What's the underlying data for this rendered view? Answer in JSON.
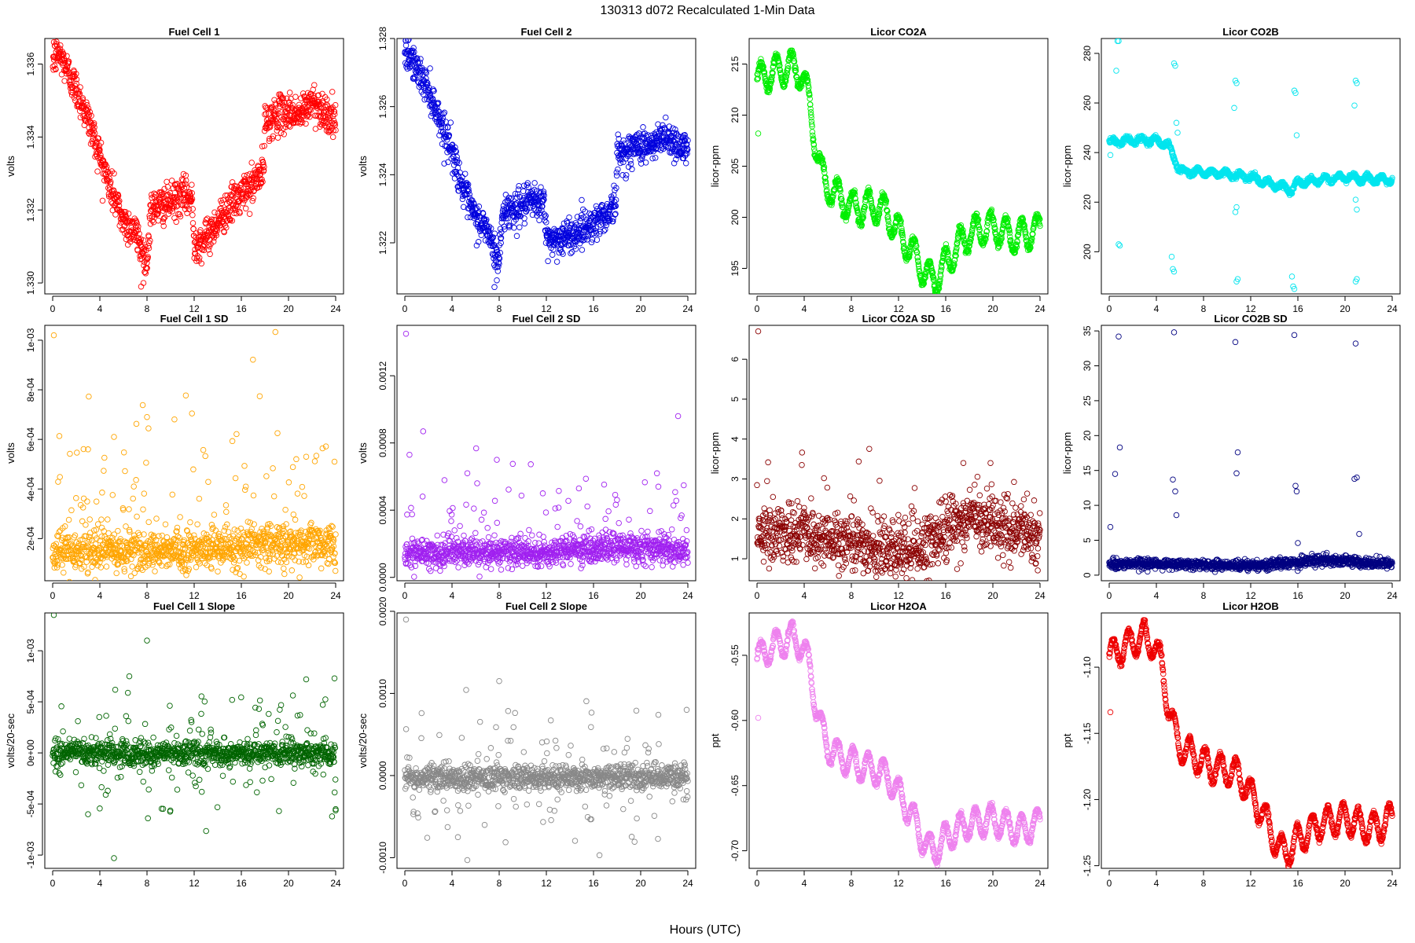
{
  "figure": {
    "title": "130313   d072   Recalculated 1-Min Data",
    "xlabel": "Hours (UTC)"
  },
  "chart_data": [
    {
      "type": "scatter",
      "title": "Fuel Cell 1",
      "ylabel": "volts",
      "color": "#ff0000",
      "xlim": [
        0,
        24
      ],
      "ylim": [
        1.3297,
        1.3367
      ],
      "xticks": [
        0,
        4,
        8,
        12,
        16,
        20,
        24
      ],
      "xtick_labels": [
        "0",
        "4",
        "8",
        "12",
        "16",
        "20",
        "24"
      ],
      "yticks": [
        1.33,
        1.332,
        1.334,
        1.336
      ],
      "ytick_labels": [
        "1.330",
        "1.332",
        "1.334",
        "1.336"
      ],
      "trend_x": [
        0,
        0.5,
        1,
        2,
        3,
        4,
        5,
        6,
        7,
        7.5,
        8,
        8.3,
        9,
        10,
        11,
        11.8,
        12,
        13,
        14,
        15,
        16,
        17,
        17.9,
        18,
        19,
        20,
        21,
        22,
        23,
        24
      ],
      "trend_y": [
        1.3361,
        1.3363,
        1.336,
        1.3353,
        1.3345,
        1.3335,
        1.3325,
        1.3317,
        1.3314,
        1.331,
        1.3305,
        1.332,
        1.3321,
        1.3322,
        1.3324,
        1.3323,
        1.3311,
        1.3312,
        1.3317,
        1.3321,
        1.3324,
        1.3327,
        1.3331,
        1.3344,
        1.3346,
        1.3347,
        1.3346,
        1.335,
        1.3347,
        1.3344
      ],
      "noise": 0.00025,
      "outliers": [
        [
          7.5,
          1.3299
        ],
        [
          7.7,
          1.33
        ],
        [
          0.1,
          1.3366
        ],
        [
          5.2,
          1.333
        ]
      ]
    },
    {
      "type": "scatter",
      "title": "Fuel Cell 2",
      "ylabel": "volts",
      "color": "#0000dd",
      "xlim": [
        0,
        24
      ],
      "ylim": [
        1.3205,
        1.328
      ],
      "xticks": [
        0,
        4,
        8,
        12,
        16,
        20,
        24
      ],
      "xtick_labels": [
        "0",
        "4",
        "8",
        "12",
        "16",
        "20",
        "24"
      ],
      "yticks": [
        1.322,
        1.324,
        1.326,
        1.328
      ],
      "ytick_labels": [
        "1.322",
        "1.324",
        "1.326",
        "1.328"
      ],
      "trend_x": [
        0,
        0.5,
        1,
        2,
        3,
        4,
        5,
        6,
        7,
        7.5,
        8,
        8.3,
        9,
        10,
        11,
        11.8,
        12,
        13,
        14,
        15,
        16,
        17,
        17.9,
        18,
        19,
        20,
        21,
        22,
        23,
        24
      ],
      "trend_y": [
        1.3274,
        1.3275,
        1.3271,
        1.3265,
        1.3256,
        1.3247,
        1.3235,
        1.3227,
        1.3224,
        1.3218,
        1.3215,
        1.3229,
        1.323,
        1.3231,
        1.3232,
        1.3232,
        1.3221,
        1.3221,
        1.3222,
        1.3224,
        1.3226,
        1.3228,
        1.3232,
        1.3246,
        1.3247,
        1.3249,
        1.3248,
        1.3252,
        1.3249,
        1.3247
      ],
      "noise": 0.00025,
      "outliers": [
        [
          7.6,
          1.3207
        ],
        [
          7.8,
          1.3209
        ],
        [
          0.1,
          1.3278
        ],
        [
          9.5,
          1.3222
        ]
      ]
    },
    {
      "type": "scatter",
      "title": "Licor CO2A",
      "ylabel": "licor-ppm",
      "color": "#00ee00",
      "xlim": [
        0,
        24
      ],
      "ylim": [
        192.5,
        217.5
      ],
      "xticks": [
        0,
        4,
        8,
        12,
        16,
        20,
        24
      ],
      "xtick_labels": [
        "0",
        "4",
        "8",
        "12",
        "16",
        "20",
        "24"
      ],
      "yticks": [
        195,
        200,
        205,
        210,
        215
      ],
      "ytick_labels": [
        "195",
        "200",
        "205",
        "210",
        "215"
      ],
      "trend_x": [
        0,
        1,
        2,
        3,
        3.8,
        4.5,
        5,
        5.5,
        6,
        7,
        8,
        9,
        10,
        11,
        12,
        13,
        14,
        14.5,
        15,
        15.5,
        16,
        17,
        18,
        19,
        20,
        21,
        22,
        23,
        24
      ],
      "trend_y": [
        213.5,
        214.0,
        214.5,
        214.8,
        214.0,
        211.0,
        207.0,
        204.0,
        203.0,
        202.0,
        201.0,
        201.0,
        201.0,
        200.5,
        198.5,
        197.0,
        195.0,
        194.2,
        194.0,
        194.5,
        195.5,
        197.0,
        198.5,
        198.8,
        199.0,
        198.5,
        198.0,
        198.5,
        198.8
      ],
      "wave_amp": 1.5,
      "wave_period": 1.3,
      "noise": 0.2,
      "outliers": [
        [
          0.1,
          208.2
        ]
      ]
    },
    {
      "type": "scatter",
      "title": "Licor CO2B",
      "ylabel": "licor-ppm",
      "color": "#00e5ee",
      "xlim": [
        0,
        24
      ],
      "ylim": [
        183,
        286
      ],
      "xticks": [
        0,
        4,
        8,
        12,
        16,
        20,
        24
      ],
      "xtick_labels": [
        "0",
        "4",
        "8",
        "12",
        "16",
        "20",
        "24"
      ],
      "yticks": [
        200,
        220,
        240,
        260,
        280
      ],
      "ytick_labels": [
        "200",
        "220",
        "240",
        "260",
        "280"
      ],
      "trend_x": [
        0,
        2,
        4,
        5,
        5.6,
        6,
        8,
        10,
        12,
        14,
        15.5,
        16,
        18,
        20,
        22,
        24
      ],
      "trend_y": [
        244.0,
        245.0,
        245.0,
        243.0,
        237.0,
        232.5,
        232.0,
        231.5,
        230.0,
        227.0,
        225.0,
        228.0,
        229.0,
        230.0,
        229.5,
        229.0
      ],
      "wave_amp": 1.2,
      "wave_period": 1.2,
      "noise": 0.5,
      "outliers": [
        [
          0.7,
          285
        ],
        [
          0.8,
          285
        ],
        [
          0.6,
          273
        ],
        [
          0.9,
          202.5
        ],
        [
          0.8,
          203
        ],
        [
          5.5,
          276
        ],
        [
          5.6,
          275
        ],
        [
          5.4,
          193
        ],
        [
          5.5,
          192
        ],
        [
          5.3,
          198
        ],
        [
          5.7,
          252
        ],
        [
          5.8,
          248
        ],
        [
          10.7,
          269
        ],
        [
          10.8,
          268
        ],
        [
          10.6,
          258
        ],
        [
          10.7,
          216
        ],
        [
          10.8,
          218
        ],
        [
          10.9,
          189
        ],
        [
          10.8,
          188
        ],
        [
          15.7,
          265
        ],
        [
          15.8,
          264
        ],
        [
          15.6,
          186
        ],
        [
          15.7,
          185
        ],
        [
          15.5,
          190
        ],
        [
          15.9,
          247
        ],
        [
          20.9,
          269
        ],
        [
          21.0,
          268
        ],
        [
          20.8,
          259
        ],
        [
          20.9,
          221
        ],
        [
          21.0,
          217
        ],
        [
          21.0,
          189
        ],
        [
          20.9,
          188
        ],
        [
          0.1,
          239
        ]
      ]
    },
    {
      "type": "scatter",
      "title": "Fuel Cell 1 SD",
      "ylabel": "volts",
      "color": "#ffa500",
      "xlim": [
        0,
        24
      ],
      "ylim": [
        3e-05,
        0.00106
      ],
      "xticks": [
        0,
        4,
        8,
        12,
        16,
        20,
        24
      ],
      "xtick_labels": [
        "0",
        "4",
        "8",
        "12",
        "16",
        "20",
        "24"
      ],
      "yticks": [
        0.0002,
        0.0004,
        0.0006,
        0.0008,
        0.001
      ],
      "ytick_labels": [
        "2e-04",
        "4e-04",
        "6e-04",
        "8e-04",
        "1e-03"
      ],
      "trend_x": [
        0,
        12,
        18,
        24
      ],
      "trend_y": [
        0.000145,
        0.00015,
        0.00018,
        0.00017
      ],
      "noise": 4e-05,
      "spread_frac": 0.1,
      "spread_scale": 0.00025,
      "outliers": [
        [
          0.1,
          0.00102
        ],
        [
          8.0,
          0.00069
        ],
        [
          5.2,
          0.00061
        ],
        [
          3.0,
          0.00056
        ],
        [
          23.9,
          0.00051
        ],
        [
          21.5,
          0.00053
        ]
      ]
    },
    {
      "type": "scatter",
      "title": "Fuel Cell 2 SD",
      "ylabel": "volts",
      "color": "#a020f0",
      "xlim": [
        0,
        24
      ],
      "ylim": [
        -2e-05,
        0.0015
      ],
      "xticks": [
        0,
        4,
        8,
        12,
        16,
        20,
        24
      ],
      "xtick_labels": [
        "0",
        "4",
        "8",
        "12",
        "16",
        "20",
        "24"
      ],
      "yticks": [
        0.0,
        0.0004,
        0.0008,
        0.0012
      ],
      "ytick_labels": [
        "0.0000",
        "0.0004",
        "0.0008",
        "0.0012"
      ],
      "trend_x": [
        0,
        12,
        18,
        24
      ],
      "trend_y": [
        0.00014,
        0.00015,
        0.00018,
        0.00015
      ],
      "noise": 4e-05,
      "spread_frac": 0.08,
      "spread_scale": 0.0003,
      "outliers": [
        [
          0.1,
          0.00145
        ],
        [
          7.8,
          0.0007
        ],
        [
          5.3,
          0.00062
        ],
        [
          21.5,
          0.00054
        ],
        [
          11.7,
          0.0005
        ]
      ]
    },
    {
      "type": "scatter",
      "title": "Licor CO2A SD",
      "ylabel": "licor-ppm",
      "color": "#8b0000",
      "xlim": [
        0,
        24
      ],
      "ylim": [
        0.45,
        6.85
      ],
      "xticks": [
        0,
        4,
        8,
        12,
        16,
        20,
        24
      ],
      "xtick_labels": [
        "0",
        "4",
        "8",
        "12",
        "16",
        "20",
        "24"
      ],
      "yticks": [
        1,
        2,
        3,
        4,
        5,
        6
      ],
      "ytick_labels": [
        "1",
        "2",
        "3",
        "4",
        "5",
        "6"
      ],
      "trend_x": [
        0,
        4,
        8,
        12,
        14,
        18,
        20,
        24
      ],
      "trend_y": [
        1.6,
        1.6,
        1.4,
        1.15,
        1.3,
        2.0,
        1.9,
        1.5
      ],
      "noise": 0.35,
      "spread_frac": 0.05,
      "spread_scale": 0.9,
      "outliers": [
        [
          0.1,
          6.7
        ],
        [
          3.8,
          3.35
        ],
        [
          17.5,
          3.4
        ],
        [
          19.8,
          3.4
        ]
      ]
    },
    {
      "type": "scatter",
      "title": "Licor CO2B SD",
      "ylabel": "licor-ppm",
      "color": "#000080",
      "xlim": [
        0,
        24
      ],
      "ylim": [
        -0.8,
        35.8
      ],
      "xticks": [
        0,
        4,
        8,
        12,
        16,
        20,
        24
      ],
      "xtick_labels": [
        "0",
        "4",
        "8",
        "12",
        "16",
        "20",
        "24"
      ],
      "yticks": [
        0,
        5,
        10,
        15,
        20,
        25,
        30,
        35
      ],
      "ytick_labels": [
        "0",
        "5",
        "10",
        "15",
        "20",
        "25",
        "30",
        "35"
      ],
      "trend_x": [
        0,
        6,
        10,
        14,
        18,
        24
      ],
      "trend_y": [
        1.7,
        1.6,
        1.4,
        1.5,
        2.2,
        1.6
      ],
      "noise": 0.35,
      "outliers": [
        [
          0.1,
          6.9
        ],
        [
          0.8,
          34.2
        ],
        [
          0.5,
          14.5
        ],
        [
          0.9,
          18.3
        ],
        [
          5.5,
          34.8
        ],
        [
          5.6,
          12.0
        ],
        [
          5.4,
          13.7
        ],
        [
          5.7,
          8.6
        ],
        [
          10.7,
          33.4
        ],
        [
          10.8,
          14.6
        ],
        [
          10.9,
          17.6
        ],
        [
          15.7,
          34.4
        ],
        [
          15.8,
          12.8
        ],
        [
          15.9,
          12.0
        ],
        [
          16.0,
          4.6
        ],
        [
          20.9,
          33.2
        ],
        [
          21.0,
          14.0
        ],
        [
          20.8,
          13.8
        ],
        [
          21.2,
          5.9
        ]
      ]
    },
    {
      "type": "scatter",
      "title": "Fuel Cell 1 Slope",
      "ylabel": "volts/20-sec",
      "color": "#006400",
      "xlim": [
        0,
        24
      ],
      "ylim": [
        -0.00113,
        0.00137
      ],
      "xticks": [
        0,
        4,
        8,
        12,
        16,
        20,
        24
      ],
      "xtick_labels": [
        "0",
        "4",
        "8",
        "12",
        "16",
        "20",
        "24"
      ],
      "yticks": [
        -0.001,
        -0.0005,
        0.0,
        0.0005,
        0.001
      ],
      "ytick_labels": [
        "-1e-03",
        "-5e-04",
        "0e+00",
        "5e-04",
        "1e-03"
      ],
      "trend_x": [
        0,
        24
      ],
      "trend_y": [
        0.0,
        0.0
      ],
      "noise": 6e-05,
      "spread_frac": 0.12,
      "spread_scale": 0.0003,
      "outliers": [
        [
          0.1,
          0.00135
        ],
        [
          8.0,
          0.0011
        ],
        [
          5.2,
          -0.00103
        ],
        [
          6.5,
          0.00075
        ],
        [
          21.5,
          0.00072
        ],
        [
          23.9,
          0.00073
        ],
        [
          24.0,
          -0.00055
        ],
        [
          3.0,
          -0.0006
        ]
      ]
    },
    {
      "type": "scatter",
      "title": "Fuel Cell 2 Slope",
      "ylabel": "volts/20-sec",
      "color": "#888888",
      "xlim": [
        0,
        24
      ],
      "ylim": [
        -0.00113,
        0.00198
      ],
      "xticks": [
        0,
        4,
        8,
        12,
        16,
        20,
        24
      ],
      "xtick_labels": [
        "0",
        "4",
        "8",
        "12",
        "16",
        "20",
        "24"
      ],
      "yticks": [
        -0.001,
        0.0,
        0.001,
        0.002
      ],
      "ytick_labels": [
        "-0.0010",
        "0.0000",
        "0.0010",
        "0.0020"
      ],
      "trend_x": [
        0,
        24
      ],
      "trend_y": [
        -2e-05,
        -2e-05
      ],
      "noise": 7e-05,
      "spread_frac": 0.12,
      "spread_scale": 0.00035,
      "outliers": [
        [
          0.1,
          0.0019
        ],
        [
          8.0,
          0.00115
        ],
        [
          5.3,
          -0.00103
        ],
        [
          21.5,
          0.00074
        ],
        [
          23.9,
          0.0008
        ],
        [
          4.5,
          -0.00075
        ]
      ]
    },
    {
      "type": "scatter",
      "title": "Licor H2OA",
      "ylabel": "ppt",
      "color": "#ee82ee",
      "xlim": [
        0,
        24
      ],
      "ylim": [
        -0.7135,
        -0.5175
      ],
      "xticks": [
        0,
        4,
        8,
        12,
        16,
        20,
        24
      ],
      "xtick_labels": [
        "0",
        "4",
        "8",
        "12",
        "16",
        "20",
        "24"
      ],
      "yticks": [
        -0.7,
        -0.65,
        -0.6,
        -0.55
      ],
      "ytick_labels": [
        "-0.70",
        "-0.65",
        "-0.60",
        "-0.55"
      ],
      "trend_x": [
        0,
        1,
        2,
        3,
        3.8,
        4.5,
        5,
        5.5,
        6,
        7,
        8,
        9,
        10,
        11,
        12,
        13,
        14,
        14.5,
        15,
        15.5,
        16,
        17,
        18,
        19,
        20,
        21,
        22,
        23,
        24
      ],
      "trend_y": [
        -0.552,
        -0.546,
        -0.54,
        -0.536,
        -0.542,
        -0.56,
        -0.588,
        -0.608,
        -0.62,
        -0.628,
        -0.632,
        -0.636,
        -0.638,
        -0.642,
        -0.656,
        -0.67,
        -0.69,
        -0.698,
        -0.699,
        -0.696,
        -0.69,
        -0.684,
        -0.679,
        -0.678,
        -0.676,
        -0.68,
        -0.684,
        -0.683,
        -0.678
      ],
      "wave_amp": 0.011,
      "wave_period": 1.3,
      "noise": 0.0012,
      "outliers": [
        [
          0.1,
          -0.598
        ]
      ]
    },
    {
      "type": "scatter",
      "title": "Licor H2OB",
      "ylabel": "ppt",
      "color": "#ee0000",
      "xlim": [
        0,
        24
      ],
      "ylim": [
        -1.252,
        -1.059
      ],
      "xticks": [
        0,
        4,
        8,
        12,
        16,
        20,
        24
      ],
      "xtick_labels": [
        "0",
        "4",
        "8",
        "12",
        "16",
        "20",
        "24"
      ],
      "yticks": [
        -1.25,
        -1.2,
        -1.15,
        -1.1
      ],
      "ytick_labels": [
        "-1.25",
        "-1.20",
        "-1.15",
        "-1.10"
      ],
      "trend_x": [
        0,
        1,
        2,
        3,
        3.8,
        4.5,
        5,
        5.5,
        6,
        7,
        8,
        9,
        10,
        11,
        12,
        13,
        14,
        14.5,
        15,
        15.5,
        16,
        17,
        18,
        19,
        20,
        21,
        22,
        23,
        24
      ],
      "trend_y": [
        -1.092,
        -1.086,
        -1.081,
        -1.077,
        -1.083,
        -1.1,
        -1.128,
        -1.148,
        -1.16,
        -1.166,
        -1.172,
        -1.176,
        -1.178,
        -1.182,
        -1.196,
        -1.21,
        -1.23,
        -1.238,
        -1.239,
        -1.236,
        -1.23,
        -1.224,
        -1.218,
        -1.216,
        -1.214,
        -1.218,
        -1.222,
        -1.22,
        -1.214
      ],
      "wave_amp": 0.011,
      "wave_period": 1.3,
      "noise": 0.0012,
      "outliers": [
        [
          0.1,
          -1.134
        ]
      ]
    }
  ]
}
